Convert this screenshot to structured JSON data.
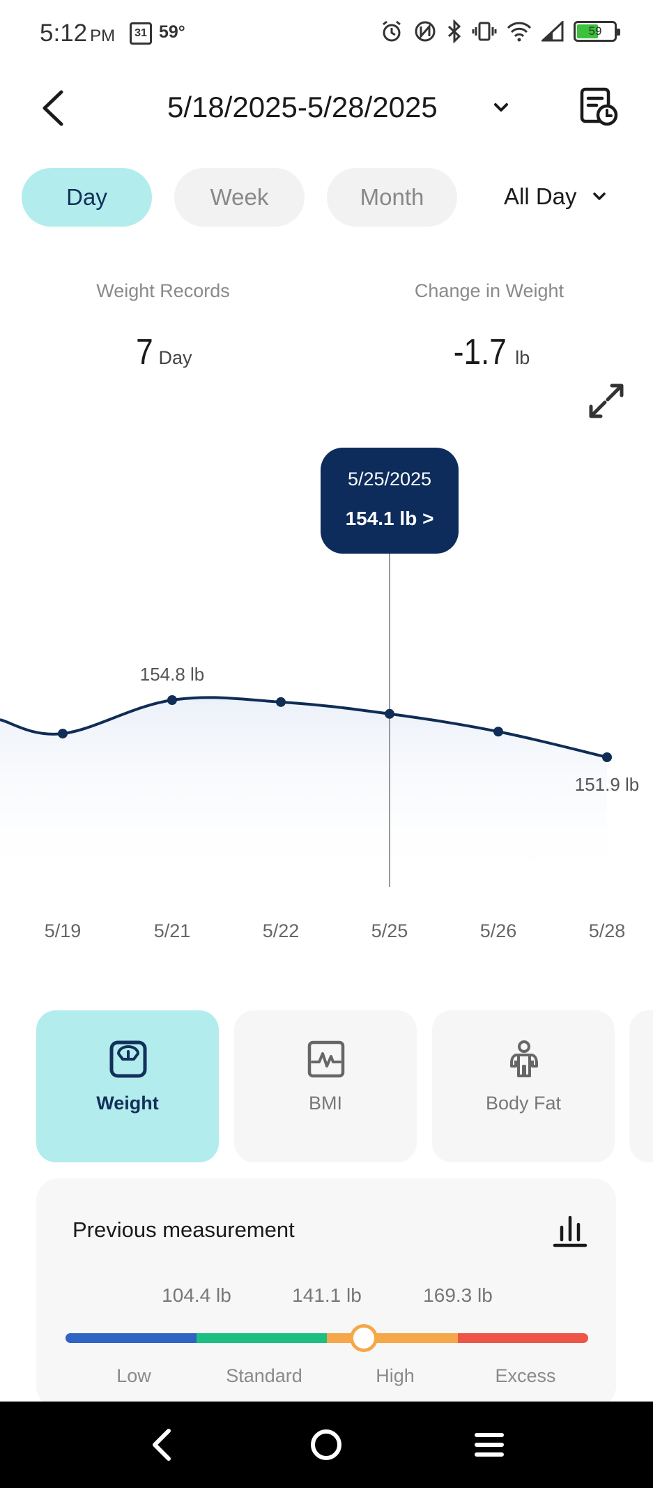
{
  "status_bar": {
    "time": "5:12",
    "ampm": "PM",
    "calendar_day": "31",
    "temperature": "59°",
    "battery": "59"
  },
  "header": {
    "date_range": "5/18/2025-5/28/2025"
  },
  "tabs": [
    {
      "label": "Day",
      "active": true
    },
    {
      "label": "Week",
      "active": false
    },
    {
      "label": "Month",
      "active": false
    }
  ],
  "time_filter": "All Day",
  "summary": {
    "records_label": "Weight Records",
    "records_value": "7",
    "records_unit": "Day",
    "change_label": "Change in Weight",
    "change_value": "-1.7",
    "change_unit": "lb"
  },
  "chart_data": {
    "type": "line",
    "x": [
      "5/19",
      "5/21",
      "5/22",
      "5/25",
      "5/26",
      "5/28"
    ],
    "values": [
      153.1,
      154.8,
      154.7,
      154.1,
      153.2,
      151.9
    ],
    "unit": "lb",
    "max_label": "154.8 lb",
    "min_label": "151.9 lb",
    "tooltip": {
      "date": "5/25/2025",
      "value": "154.1 lb >",
      "index": 3
    },
    "line_color": "#0f2d55"
  },
  "metric_cards": [
    {
      "label": "Weight",
      "icon": "scale-icon",
      "active": true
    },
    {
      "label": "BMI",
      "icon": "pulse-icon",
      "active": false
    },
    {
      "label": "Body Fat",
      "icon": "body-icon",
      "active": false
    }
  ],
  "previous": {
    "title": "Previous measurement",
    "thresholds": [
      "104.4 lb",
      "141.1 lb",
      "169.3 lb"
    ],
    "categories": [
      "Low",
      "Standard",
      "High",
      "Excess"
    ],
    "colors": [
      "#2f63c4",
      "#1dbf80",
      "#f5a74a",
      "#ee5548"
    ],
    "current_fraction": 0.57
  }
}
